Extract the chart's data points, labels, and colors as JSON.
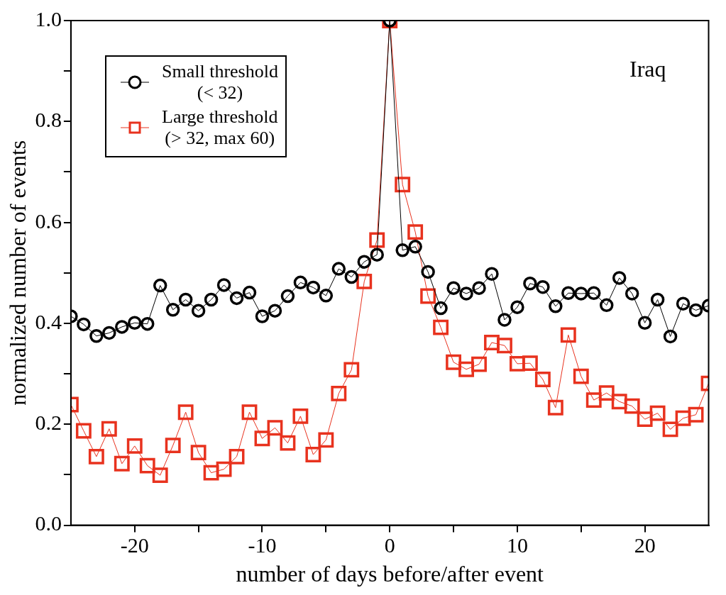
{
  "chart_data": {
    "type": "line",
    "xlabel": "number of days before/after event",
    "ylabel": "normalized number of events",
    "annotations": [
      "Iraq"
    ],
    "x": [
      -25,
      -24,
      -23,
      -22,
      -21,
      -20,
      -19,
      -18,
      -17,
      -16,
      -15,
      -14,
      -13,
      -12,
      -11,
      -10,
      -9,
      -8,
      -7,
      -6,
      -5,
      -4,
      -3,
      -2,
      -1,
      0,
      1,
      2,
      3,
      4,
      5,
      6,
      7,
      8,
      9,
      10,
      11,
      12,
      13,
      14,
      15,
      16,
      17,
      18,
      19,
      20,
      21,
      22,
      23,
      24,
      25
    ],
    "series": [
      {
        "name": "Small threshold\n(< 32)",
        "color": "#000000",
        "marker": "circle",
        "values": [
          0.414,
          0.398,
          0.375,
          0.381,
          0.393,
          0.401,
          0.399,
          0.475,
          0.427,
          0.447,
          0.425,
          0.447,
          0.476,
          0.45,
          0.461,
          0.414,
          0.425,
          0.454,
          0.481,
          0.471,
          0.455,
          0.508,
          0.492,
          0.522,
          0.536,
          1.0,
          0.545,
          0.552,
          0.502,
          0.43,
          0.47,
          0.459,
          0.47,
          0.498,
          0.407,
          0.432,
          0.479,
          0.472,
          0.434,
          0.46,
          0.459,
          0.46,
          0.436,
          0.49,
          0.459,
          0.401,
          0.447,
          0.374,
          0.439,
          0.426,
          0.435
        ]
      },
      {
        "name": "Large threshold\n(> 32, max 60)",
        "color": "#e8321e",
        "marker": "square",
        "values": [
          0.239,
          0.187,
          0.136,
          0.191,
          0.122,
          0.157,
          0.118,
          0.099,
          0.158,
          0.224,
          0.144,
          0.104,
          0.111,
          0.136,
          0.224,
          0.172,
          0.193,
          0.163,
          0.216,
          0.14,
          0.169,
          0.261,
          0.308,
          0.483,
          0.565,
          1.0,
          0.675,
          0.581,
          0.454,
          0.392,
          0.323,
          0.309,
          0.319,
          0.362,
          0.356,
          0.32,
          0.321,
          0.289,
          0.233,
          0.377,
          0.295,
          0.248,
          0.262,
          0.245,
          0.236,
          0.21,
          0.222,
          0.19,
          0.212,
          0.219,
          0.281
        ]
      }
    ],
    "xlim": [
      -25,
      25
    ],
    "xticks": [
      -20,
      {
        "value": -15,
        "label": null
      },
      -10,
      {
        "value": -5,
        "label": null
      },
      0,
      {
        "value": 5,
        "label": null
      },
      10,
      {
        "value": 15,
        "label": null
      },
      20
    ],
    "ylim": [
      0,
      1
    ],
    "yticks": [
      {
        "value": 0,
        "label": "0.0"
      },
      {
        "value": 0.1,
        "label": null
      },
      0.2,
      {
        "value": 0.3,
        "label": null
      },
      0.4,
      {
        "value": 0.5,
        "label": null
      },
      0.6,
      {
        "value": 0.7,
        "label": null
      },
      0.8,
      {
        "value": 0.9,
        "label": null
      },
      {
        "value": 1,
        "label": "1.0"
      }
    ],
    "grid": false,
    "legend": "top left",
    "line_style": "solid"
  }
}
